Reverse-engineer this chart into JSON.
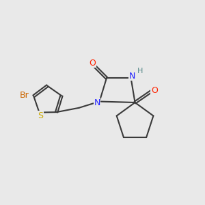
{
  "bg_color": "#e9e9e9",
  "bond_color": "#3a3a3a",
  "bond_lw": 1.5,
  "atom_colors": {
    "O": "#ff2200",
    "N": "#2222ff",
    "S": "#ccaa00",
    "Br": "#cc6600",
    "H": "#558888",
    "C": "#3a3a3a"
  },
  "xlim": [
    0,
    10
  ],
  "ylim": [
    1,
    9
  ]
}
